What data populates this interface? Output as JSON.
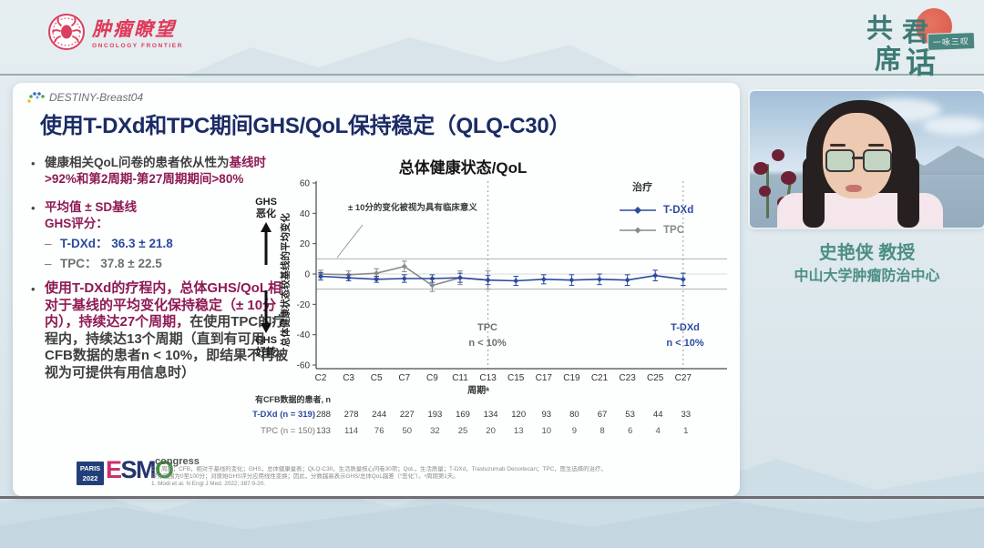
{
  "top_bar": {
    "oncology_frontier": {
      "cn": "肿瘤瞭望",
      "en": "ONCOLOGY FRONTIER",
      "color": "#e0395a"
    },
    "event_logo": {
      "char1": "共",
      "char2": "君",
      "char3": "席",
      "char4": "话",
      "tagline": "一咏三叹",
      "color": "#3e7a74"
    }
  },
  "slide": {
    "study_tag": "DESTINY-Breast04",
    "title": "使用T-DXd和TPC期间GHS/QoL保持稳定（QLQ-C30）",
    "title_color": "#1b2b66",
    "bullets": {
      "b1_gray": "健康相关QoL问卷的患者依从性为",
      "b1_magenta": "基线时>92%和第2周期-第27周期期间>80%",
      "b2_line1": "平均值 ± SD基线",
      "b2_line2": "GHS评分：",
      "b2_item1_label": "T-DXd：",
      "b2_item1_value": "36.3 ± 21.8",
      "b2_item2_label": "TPC：",
      "b2_item2_value": "37.8 ± 22.5",
      "b3_magenta": "使用T-DXd的疗程内，总体GHS/QoL相对于基线的平均变化保持稳定（± 10分内），持续达27个周期，",
      "b3_gray": "在使用TPC的疗程内，持续达13个周期（直到有可用CFB数据的患者n < 10%，即结果不再被视为可提供有用信息时）"
    },
    "footer": {
      "esmo_box_line1": "PARIS",
      "esmo_box_line2": "2022",
      "esmo_letters": [
        {
          "ch": "E",
          "color": "#cf2f6b"
        },
        {
          "ch": "S",
          "color": "#24356f"
        },
        {
          "ch": "M",
          "color": "#24356f"
        },
        {
          "ch": "O",
          "color": "#3f8f3f"
        }
      ],
      "esmo_congress": "congress",
      "note1": "C，周期；CFB，相对于基线的变化；GHS，总体健康量表；QLQ-C30，生活质量核心问卷30项；QoL，生活质量；T-DXd，Trastuzumab Deruxtecan；TPC，医生选择的治疗。",
      "note2": "评分范围为0至100分；对原始GHS评分应用线性变换；因此，分数越高表示GHS/总体QoL越差（“恶化”）。ᵃ周期第1天。",
      "note3": "1. Modi et al. N Engl J Med. 2022; 387:9-20."
    }
  },
  "presenter": {
    "name": "史艳侠 教授",
    "affiliation": "中山大学肿瘤防治中心",
    "color": "#4d8e85"
  },
  "chart_data": {
    "type": "line",
    "title": "总体健康状态/QoL",
    "xlabel": "周期ᵃ",
    "ylabel": "总体健康状态较基线的平均变化",
    "ylim": [
      -60,
      60
    ],
    "yticks": [
      60,
      40,
      20,
      0,
      -20,
      -40,
      -60
    ],
    "threshold_lines": [
      10,
      -10
    ],
    "annotation": "± 10分的变化被视为具有临床意义",
    "legend_title": "治疗",
    "legend_position": "upper right",
    "axis_direction_labels": {
      "worse": [
        "GHS",
        "恶化"
      ],
      "better": [
        "GHS",
        "好转"
      ]
    },
    "categories": [
      "C2",
      "C3",
      "C5",
      "C7",
      "C9",
      "C11",
      "C13",
      "C15",
      "C17",
      "C19",
      "C21",
      "C23",
      "C25",
      "C27"
    ],
    "series": [
      {
        "name": "T-DXd",
        "color": "#2b4a9e",
        "values": [
          -1.5,
          -2.5,
          -3.5,
          -3,
          -3,
          -2.5,
          -4,
          -4.5,
          -3.5,
          -4,
          -3.5,
          -4,
          -1,
          -3.5
        ],
        "errors": [
          2.5,
          2,
          2,
          2.5,
          2.5,
          3,
          3,
          3,
          3,
          3.5,
          3.5,
          3.5,
          3.5,
          4
        ]
      },
      {
        "name": "TPC",
        "color": "#8a8a8a",
        "values": [
          0,
          -0.5,
          0.5,
          5,
          -7.5,
          -2.5,
          -4
        ],
        "errors": [
          2.5,
          2.5,
          3,
          3.5,
          4,
          4.5,
          6
        ]
      }
    ],
    "cutoff_markers": [
      {
        "category": "C13",
        "label_lines": [
          "TPC",
          "n < 10%"
        ],
        "color": "#6e6e6e"
      },
      {
        "category": "C27",
        "label_lines": [
          "T-DXd",
          "n < 10%"
        ],
        "color": "#2b4a9e"
      }
    ],
    "risk_table": {
      "header": "有CFB数据的患者, n",
      "rows": [
        {
          "label": "T-DXd (n = 319)",
          "color": "#2b4a9e",
          "bold": true,
          "values": [
            288,
            278,
            244,
            227,
            193,
            169,
            134,
            120,
            93,
            80,
            67,
            53,
            44,
            33
          ]
        },
        {
          "label": "TPC (n = 150)",
          "color": "#777777",
          "bold": false,
          "values": [
            133,
            114,
            76,
            50,
            32,
            25,
            20,
            13,
            10,
            9,
            8,
            6,
            4,
            1
          ]
        }
      ]
    }
  }
}
